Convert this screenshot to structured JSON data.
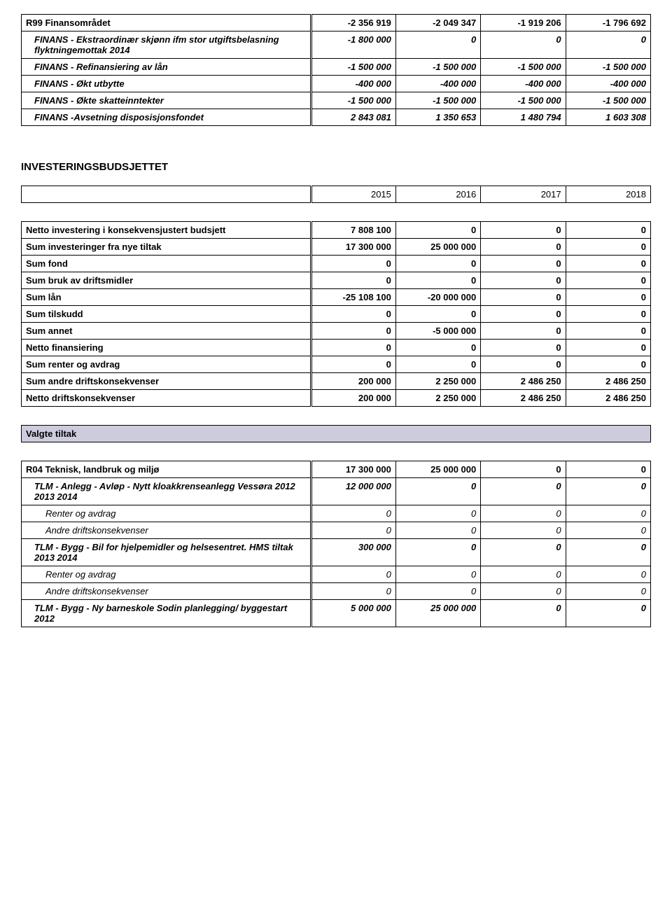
{
  "table1": {
    "rows": [
      {
        "label": "R99 Finansområdet",
        "c": [
          "-2 356 919",
          "-2 049 347",
          "-1 919 206",
          "-1 796 692"
        ],
        "bold": true,
        "italic": false,
        "indent": 0
      },
      {
        "label": "FINANS - Ekstraordinær skjønn ifm stor utgiftsbelasning flyktningemottak 2014",
        "c": [
          "-1 800 000",
          "0",
          "0",
          "0"
        ],
        "bold": true,
        "italic": true,
        "indent": 1
      },
      {
        "label": "FINANS - Refinansiering av lån",
        "c": [
          "-1 500 000",
          "-1 500 000",
          "-1 500 000",
          "-1 500 000"
        ],
        "bold": true,
        "italic": true,
        "indent": 1
      },
      {
        "label": "FINANS - Økt utbytte",
        "c": [
          "-400 000",
          "-400 000",
          "-400 000",
          "-400 000"
        ],
        "bold": true,
        "italic": true,
        "indent": 1
      },
      {
        "label": "FINANS - Økte skatteinntekter",
        "c": [
          "-1 500 000",
          "-1 500 000",
          "-1 500 000",
          "-1 500 000"
        ],
        "bold": true,
        "italic": true,
        "indent": 1
      },
      {
        "label": "FINANS -Avsetning disposisjonsfondet",
        "c": [
          "2 843 081",
          "1 350 653",
          "1 480 794",
          "1 603 308"
        ],
        "bold": true,
        "italic": true,
        "indent": 1
      }
    ]
  },
  "section_heading": "INVESTERINGSBUDSJETTET",
  "years": [
    "2015",
    "2016",
    "2017",
    "2018"
  ],
  "table2": {
    "rows": [
      {
        "label": "Netto investering i konsekvensjustert budsjett",
        "c": [
          "7 808 100",
          "0",
          "0",
          "0"
        ],
        "bold": true
      },
      {
        "label": "Sum investeringer fra nye tiltak",
        "c": [
          "17 300 000",
          "25 000 000",
          "0",
          "0"
        ],
        "bold": true
      },
      {
        "label": "Sum fond",
        "c": [
          "0",
          "0",
          "0",
          "0"
        ],
        "bold": true
      },
      {
        "label": "Sum bruk av driftsmidler",
        "c": [
          "0",
          "0",
          "0",
          "0"
        ],
        "bold": true
      },
      {
        "label": "Sum lån",
        "c": [
          "-25 108 100",
          "-20 000 000",
          "0",
          "0"
        ],
        "bold": true
      },
      {
        "label": "Sum tilskudd",
        "c": [
          "0",
          "0",
          "0",
          "0"
        ],
        "bold": true
      },
      {
        "label": "Sum annet",
        "c": [
          "0",
          "-5 000 000",
          "0",
          "0"
        ],
        "bold": true
      },
      {
        "label": "Netto finansiering",
        "c": [
          "0",
          "0",
          "0",
          "0"
        ],
        "bold": true
      },
      {
        "label": "Sum renter og avdrag",
        "c": [
          "0",
          "0",
          "0",
          "0"
        ],
        "bold": true
      },
      {
        "label": "Sum andre driftskonsekvenser",
        "c": [
          "200 000",
          "2 250 000",
          "2 486 250",
          "2 486 250"
        ],
        "bold": true
      },
      {
        "label": "Netto driftskonsekvenser",
        "c": [
          "200 000",
          "2 250 000",
          "2 486 250",
          "2 486 250"
        ],
        "bold": true
      }
    ]
  },
  "valgte_tiltak": "Valgte tiltak",
  "table3": {
    "rows": [
      {
        "label": "R04 Teknisk, landbruk og miljø",
        "c": [
          "17 300 000",
          "25 000 000",
          "0",
          "0"
        ],
        "bold": true,
        "italic": false,
        "indent": 0
      },
      {
        "label": "TLM - Anlegg - Avløp - Nytt kloakkrenseanlegg Vessøra 2012 2013 2014",
        "c": [
          "12 000 000",
          "0",
          "0",
          "0"
        ],
        "bold": true,
        "italic": true,
        "indent": 1
      },
      {
        "label": "Renter og avdrag",
        "c": [
          "0",
          "0",
          "0",
          "0"
        ],
        "bold": false,
        "italic": true,
        "indent": 2
      },
      {
        "label": "Andre driftskonsekvenser",
        "c": [
          "0",
          "0",
          "0",
          "0"
        ],
        "bold": false,
        "italic": true,
        "indent": 2
      },
      {
        "label": "TLM - Bygg - Bil for hjelpemidler og helsesentret. HMS tiltak 2013 2014",
        "c": [
          "300 000",
          "0",
          "0",
          "0"
        ],
        "bold": true,
        "italic": true,
        "indent": 1
      },
      {
        "label": "Renter og avdrag",
        "c": [
          "0",
          "0",
          "0",
          "0"
        ],
        "bold": false,
        "italic": true,
        "indent": 2
      },
      {
        "label": "Andre driftskonsekvenser",
        "c": [
          "0",
          "0",
          "0",
          "0"
        ],
        "bold": false,
        "italic": true,
        "indent": 2
      },
      {
        "label": "TLM - Bygg - Ny barneskole Sodin planlegging/ byggestart 2012",
        "c": [
          "5 000 000",
          "25 000 000",
          "0",
          "0"
        ],
        "bold": true,
        "italic": true,
        "indent": 1
      }
    ]
  }
}
